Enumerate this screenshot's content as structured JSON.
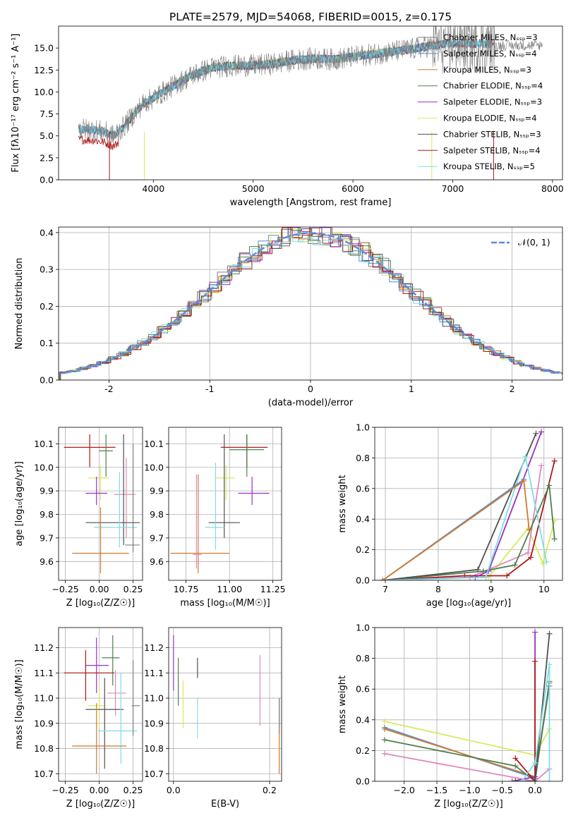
{
  "title": "PLATE=2579, MJD=54068, FIBERID=0015, z=0.175",
  "colors": {
    "chabrier_miles": "#7f7f7f",
    "salpeter_miles": "#4e8fdc",
    "kroupa_miles": "#d07a2e",
    "chabrier_elodie": "#4f7f4f",
    "salpeter_elodie": "#9a30c0",
    "kroupa_elodie": "#d9e95f",
    "chabrier_stelib": "#505050",
    "salpeter_stelib": "#b01818",
    "kroupa_stelib": "#7fdde6",
    "pink": "#e088bb",
    "normal": "#5b8ae0"
  },
  "chart_data": [
    {
      "type": "line",
      "id": "spectrum",
      "xlabel": "wavelength [Angstrom, rest frame]",
      "ylabel": "Flux [fλ10⁻¹⁷ erg cm⁻² s⁻¹ A⁻¹]",
      "xlim": [
        3050,
        8100
      ],
      "ylim": [
        0,
        17.5
      ],
      "xticks": [
        4000,
        5000,
        6000,
        7000,
        8000
      ],
      "yticks": [
        0.0,
        2.5,
        5.0,
        7.5,
        10.0,
        12.5,
        15.0
      ],
      "grid": false,
      "legend_position": "upper-right",
      "legend": [
        "Chabrier MILES, N_SSP=3",
        "Salpeter MILES, N_SSP=4",
        "Kroupa MILES, N_SSP=3",
        "Chabrier ELODIE, N_SSP=4",
        "Salpeter ELODIE, N_SSP=3",
        "Kroupa ELODIE, N_SSP=4",
        "Chabrier STELIB, N_SSP=3",
        "Salpeter STELIB, N_SSP=4",
        "Kroupa STELIB, N_SSP=5"
      ],
      "continuum": {
        "x": [
          3250,
          3400,
          3500,
          3600,
          3700,
          3800,
          3900,
          4000,
          4200,
          4400,
          4600,
          4800,
          5000,
          5200,
          5400,
          5600,
          5800,
          6000,
          6200,
          6400,
          6600,
          6800,
          7000
        ],
        "y": [
          5.8,
          5.7,
          5.5,
          5.0,
          6.0,
          7.4,
          8.7,
          9.3,
          10.7,
          12.0,
          12.8,
          13.0,
          13.0,
          13.2,
          13.6,
          13.8,
          13.7,
          14.0,
          14.3,
          14.6,
          14.9,
          15.3,
          15.5
        ]
      }
    },
    {
      "type": "area",
      "id": "residuals",
      "xlabel": "(data-model)/error",
      "ylabel": "Normed distribution",
      "xlim": [
        -2.5,
        2.5
      ],
      "ylim": [
        0,
        0.415
      ],
      "xticks": [
        -2,
        -1,
        0,
        1,
        2
      ],
      "yticks": [
        0.0,
        0.1,
        0.2,
        0.3,
        0.4
      ],
      "grid": true,
      "legend_position": "upper-right",
      "legend": [
        "𝒩(0, 1)"
      ],
      "bin_width": 0.1
    },
    {
      "type": "scatter",
      "id": "age_vs_Z",
      "xlabel": "Z [log₁₀(Z/Z☉)]",
      "ylabel": "age  [log₁₀(age/yr)]",
      "xlim": [
        -0.3,
        0.32
      ],
      "ylim": [
        9.52,
        10.17
      ],
      "xticks": [
        -0.25,
        0.0,
        0.25
      ],
      "xticklabels": [
        "−0.25",
        "0.00",
        "0.25"
      ],
      "yticks": [
        9.6,
        9.7,
        9.8,
        9.9,
        10.0,
        10.1
      ],
      "grid": true,
      "points": [
        {
          "c": "salpeter_stelib",
          "x": -0.07,
          "y": 10.085,
          "xe": [
            -0.26,
            0.12
          ],
          "ye": [
            10.0,
            10.14
          ]
        },
        {
          "c": "chabrier_elodie",
          "x": 0.05,
          "y": 10.07,
          "xe": [
            0.0,
            0.1
          ],
          "ye": [
            9.96,
            10.14
          ]
        },
        {
          "c": "kroupa_elodie",
          "x": 0.01,
          "y": 9.955,
          "xe": [
            -0.08,
            0.07
          ],
          "ye": [
            9.86,
            10.01
          ]
        },
        {
          "c": "salpeter_elodie",
          "x": -0.02,
          "y": 9.89,
          "xe": [
            -0.1,
            0.06
          ],
          "ye": [
            9.84,
            9.96
          ]
        },
        {
          "c": "pink",
          "x": 0.2,
          "y": 9.885,
          "xe": [
            0.11,
            0.27
          ],
          "ye": [
            9.7,
            10.04
          ]
        },
        {
          "c": "chabrier_stelib",
          "x": 0.18,
          "y": 9.765,
          "xe": [
            -0.1,
            0.3
          ],
          "ye": [
            9.67,
            10.14
          ]
        },
        {
          "c": "kroupa_stelib",
          "x": 0.15,
          "y": 9.745,
          "xe": [
            -0.04,
            0.28
          ],
          "ye": [
            9.66,
            9.98
          ]
        },
        {
          "c": "kroupa_miles",
          "x": 0.01,
          "y": 9.635,
          "xe": [
            -0.2,
            0.22
          ],
          "ye": [
            9.55,
            9.83
          ]
        },
        {
          "c": "chabrier_miles",
          "x": 0.25,
          "y": 9.67,
          "xe": [
            0.19,
            0.3
          ],
          "ye": [
            9.64,
            10.1
          ]
        }
      ]
    },
    {
      "type": "scatter",
      "id": "age_vs_mass",
      "xlabel": "mass [log₁₀(M/M☉)]",
      "ylabel": "",
      "xlim": [
        10.65,
        11.3
      ],
      "ylim": [
        9.52,
        10.17
      ],
      "xticks": [
        10.75,
        11.0,
        11.25
      ],
      "xticklabels": [
        "10.75",
        "11.00",
        "11.25"
      ],
      "yticks": [
        9.6,
        9.7,
        9.8,
        9.9,
        10.0,
        10.1
      ],
      "grid": true,
      "points": [
        {
          "c": "salpeter_stelib",
          "x": 11.1,
          "y": 10.085,
          "xe": [
            10.95,
            11.22
          ],
          "ye": [
            10.0,
            10.14
          ]
        },
        {
          "c": "chabrier_elodie",
          "x": 11.1,
          "y": 10.075,
          "xe": [
            11.0,
            11.2
          ],
          "ye": [
            9.96,
            10.14
          ]
        },
        {
          "c": "kroupa_elodie",
          "x": 10.98,
          "y": 9.955,
          "xe": [
            10.92,
            11.03
          ],
          "ye": [
            9.86,
            10.01
          ]
        },
        {
          "c": "salpeter_elodie",
          "x": 11.13,
          "y": 9.89,
          "xe": [
            11.05,
            11.23
          ],
          "ye": [
            9.84,
            9.96
          ]
        },
        {
          "c": "chabrier_stelib",
          "x": 10.97,
          "y": 9.765,
          "xe": [
            10.88,
            11.06
          ],
          "ye": [
            9.7,
            10.14
          ]
        },
        {
          "c": "kroupa_stelib",
          "x": 10.92,
          "y": 9.745,
          "xe": [
            10.86,
            10.97
          ],
          "ye": [
            9.65,
            10.02
          ]
        },
        {
          "c": "kroupa_miles",
          "x": 10.82,
          "y": 9.635,
          "xe": [
            10.66,
            11.0
          ],
          "ye": [
            9.55,
            9.97
          ]
        },
        {
          "c": "pink",
          "x": 10.81,
          "y": 9.63,
          "xe": [
            10.79,
            10.84
          ],
          "ye": [
            9.57,
            9.97
          ]
        }
      ]
    },
    {
      "type": "line",
      "id": "weight_vs_age",
      "xlabel": "age  [log₁₀(age/yr)]",
      "ylabel": "mass weight",
      "xlim": [
        6.8,
        10.35
      ],
      "ylim": [
        0,
        1.0
      ],
      "xticks": [
        7,
        8,
        9,
        10
      ],
      "yticks": [
        0.0,
        0.2,
        0.4,
        0.6,
        0.8,
        1.0
      ],
      "grid": true,
      "series": [
        {
          "c": "kroupa_elodie",
          "x": [
            6.95,
            8.95,
            9.7,
            9.98,
            10.2
          ],
          "y": [
            0.0,
            0.02,
            0.34,
            0.11,
            0.39
          ]
        },
        {
          "c": "pink",
          "x": [
            6.95,
            8.6,
            9.7,
            9.95
          ],
          "y": [
            0.0,
            0.02,
            0.18,
            0.75
          ]
        },
        {
          "c": "salpeter_stelib",
          "x": [
            6.95,
            8.5,
            9.3,
            9.75,
            10.2
          ],
          "y": [
            0.0,
            0.03,
            0.03,
            0.15,
            0.78
          ]
        },
        {
          "c": "chabrier_elodie",
          "x": [
            6.95,
            8.85,
            9.45,
            10.1,
            10.2
          ],
          "y": [
            0.0,
            0.06,
            0.1,
            0.62,
            0.27
          ]
        },
        {
          "c": "salpeter_elodie",
          "x": [
            6.95,
            8.7,
            8.95,
            9.95
          ],
          "y": [
            0.0,
            0.02,
            0.06,
            0.97
          ]
        },
        {
          "c": "chabrier_stelib",
          "x": [
            6.95,
            8.75,
            9.85
          ],
          "y": [
            0.0,
            0.07,
            0.96
          ]
        },
        {
          "c": "kroupa_stelib",
          "x": [
            6.95,
            8.9,
            9.65,
            10.05
          ],
          "y": [
            0.0,
            0.02,
            0.81,
            0.12
          ]
        },
        {
          "c": "salpeter_miles",
          "x": [
            6.95,
            9.62
          ],
          "y": [
            0.0,
            0.66
          ]
        },
        {
          "c": "kroupa_miles",
          "x": [
            6.95,
            9.62,
            9.72
          ],
          "y": [
            0.0,
            0.65,
            0.33
          ]
        }
      ]
    },
    {
      "type": "scatter",
      "id": "mass_vs_Z",
      "xlabel": "Z [log₁₀(Z/Z☉)]",
      "ylabel": "mass [log₁₀(M/M☉)]",
      "xlim": [
        -0.3,
        0.32
      ],
      "ylim": [
        10.67,
        11.28
      ],
      "xticks": [
        -0.25,
        0.0,
        0.25
      ],
      "xticklabels": [
        "−0.25",
        "0.00",
        "0.25"
      ],
      "yticks": [
        10.7,
        10.8,
        10.9,
        11.0,
        11.1,
        11.2
      ],
      "grid": true,
      "points": [
        {
          "c": "chabrier_elodie",
          "x": 0.1,
          "y": 11.16,
          "xe": [
            0.02,
            0.15
          ],
          "ye": [
            11.05,
            11.25
          ]
        },
        {
          "c": "salpeter_elodie",
          "x": -0.02,
          "y": 11.13,
          "xe": [
            -0.1,
            0.07
          ],
          "ye": [
            11.02,
            11.24
          ]
        },
        {
          "c": "salpeter_stelib",
          "x": -0.1,
          "y": 11.1,
          "xe": [
            -0.26,
            0.11
          ],
          "ye": [
            10.99,
            11.19
          ]
        },
        {
          "c": "pink",
          "x": 0.12,
          "y": 11.02,
          "xe": [
            0.06,
            0.2
          ],
          "ye": [
            10.93,
            11.11
          ]
        },
        {
          "c": "kroupa_elodie",
          "x": 0.0,
          "y": 10.97,
          "xe": [
            -0.08,
            0.04
          ],
          "ye": [
            10.88,
            11.07
          ]
        },
        {
          "c": "chabrier_stelib",
          "x": 0.04,
          "y": 10.955,
          "xe": [
            -0.1,
            0.18
          ],
          "ye": [
            10.72,
            11.08
          ]
        },
        {
          "c": "kroupa_stelib",
          "x": 0.16,
          "y": 10.87,
          "xe": [
            -0.01,
            0.28
          ],
          "ye": [
            10.74,
            11.1
          ]
        },
        {
          "c": "kroupa_miles",
          "x": -0.02,
          "y": 10.81,
          "xe": [
            -0.2,
            0.2
          ],
          "ye": [
            10.7,
            10.98
          ]
        },
        {
          "c": "chabrier_miles",
          "x": 0.25,
          "y": 10.97,
          "xe": [
            0.24,
            0.3
          ],
          "ye": [
            10.85,
            11.15
          ]
        }
      ]
    },
    {
      "type": "scatter",
      "id": "mass_vs_EBV",
      "xlabel": "E(B-V)",
      "ylabel": "",
      "xlim": [
        -0.01,
        0.225
      ],
      "ylim": [
        10.67,
        11.28
      ],
      "xticks": [
        0.0,
        0.2
      ],
      "xticklabels": [
        "0.0",
        "0.2"
      ],
      "yticks": [
        10.7,
        10.8,
        10.9,
        11.0,
        11.1,
        11.2
      ],
      "grid": true,
      "bars": [
        {
          "c": "salpeter_elodie",
          "x": 0.0,
          "y": [
            11.03,
            11.25
          ]
        },
        {
          "c": "chabrier_elodie",
          "x": 0.01,
          "y": [
            10.97,
            11.16
          ]
        },
        {
          "c": "kroupa_elodie",
          "x": 0.02,
          "y": [
            10.88,
            11.07
          ]
        },
        {
          "c": "chabrier_stelib",
          "x": 0.05,
          "y": [
            11.08,
            11.16
          ]
        },
        {
          "c": "kroupa_stelib",
          "x": 0.05,
          "y": [
            10.84,
            11.0
          ]
        },
        {
          "c": "pink",
          "x": 0.18,
          "y": [
            10.89,
            11.17
          ]
        },
        {
          "c": "kroupa_miles",
          "x": 0.22,
          "y": [
            10.7,
            11.0
          ]
        },
        {
          "c": "chabrier_miles",
          "x": 0.22,
          "y": [
            10.86,
            11.0
          ]
        }
      ]
    },
    {
      "type": "line",
      "id": "weight_vs_Z",
      "xlabel": "Z [log₁₀(Z/Z☉)]",
      "ylabel": "mass weight",
      "xlim": [
        -2.45,
        0.42
      ],
      "ylim": [
        0,
        1.0
      ],
      "xticks": [
        -2.0,
        -1.5,
        -1.0,
        -0.5,
        0.0
      ],
      "xticklabels": [
        "−2.0",
        "−1.5",
        "−1.0",
        "−0.5",
        "0.0"
      ],
      "yticks": [
        0.0,
        0.2,
        0.4,
        0.6,
        0.8,
        1.0
      ],
      "grid": true,
      "series": [
        {
          "c": "kroupa_elodie",
          "x": [
            -2.3,
            0.0,
            0.22
          ],
          "y": [
            0.39,
            0.17,
            0.34
          ]
        },
        {
          "c": "salpeter_miles",
          "x": [
            -2.3,
            0.0,
            0.22
          ],
          "y": [
            0.35,
            0.02,
            0.62
          ]
        },
        {
          "c": "kroupa_miles",
          "x": [
            -2.3,
            0.0,
            0.22
          ],
          "y": [
            0.34,
            0.03,
            0.64
          ]
        },
        {
          "c": "chabrier_elodie",
          "x": [
            -2.3,
            -0.3,
            0.0,
            0.22
          ],
          "y": [
            0.27,
            0.1,
            0.0,
            0.65
          ]
        },
        {
          "c": "pink",
          "x": [
            -2.3,
            0.0,
            0.22
          ],
          "y": [
            0.18,
            0.0,
            0.08
          ]
        },
        {
          "c": "salpeter_elodie",
          "x": [
            -0.35,
            0.0,
            0.0
          ],
          "y": [
            0.0,
            0.03,
            0.97
          ]
        },
        {
          "c": "salpeter_stelib",
          "x": [
            -0.3,
            0.0,
            0.0
          ],
          "y": [
            0.15,
            0.0,
            0.78
          ]
        },
        {
          "c": "chabrier_stelib",
          "x": [
            -0.3,
            0.0,
            0.22
          ],
          "y": [
            0.0,
            0.0,
            0.96
          ]
        },
        {
          "c": "kroupa_stelib",
          "x": [
            -0.2,
            0.0,
            0.22,
            0.22
          ],
          "y": [
            0.0,
            0.12,
            0.76,
            0.0
          ]
        }
      ]
    }
  ]
}
